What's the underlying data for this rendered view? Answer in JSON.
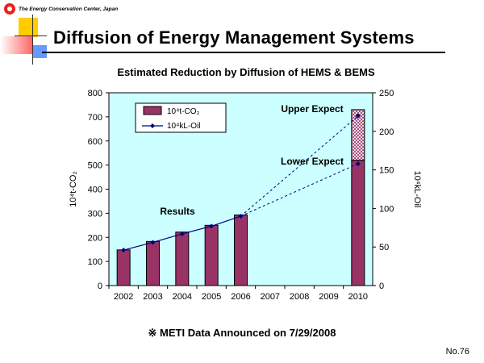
{
  "logo": {
    "text": "The Energy Conservation Center, Japan"
  },
  "slide": {
    "title": "Diffusion of Energy Management Systems",
    "page_number": "No.76"
  },
  "note": "※ METI Data Announced on 7/29/2008",
  "colors": {
    "bar": "#993366",
    "plot_bg": "#ccffff",
    "line": "#000080",
    "title_red": "#ff0000",
    "title_yellow": "#ffcc00",
    "title_blue": "#3366ff"
  },
  "chart_data": {
    "type": "bar",
    "title": "Estimated Reduction by Diffusion of HEMS & BEMS",
    "categories": [
      "2002",
      "2003",
      "2004",
      "2005",
      "2006",
      "2007",
      "2008",
      "2009",
      "2010"
    ],
    "y_left": {
      "label": "10⁴t-CO₂",
      "ticks": [
        "0",
        "100",
        "200",
        "300",
        "400",
        "500",
        "600",
        "700",
        "800"
      ],
      "ylim": [
        0,
        800
      ]
    },
    "y_right": {
      "label": "10⁴kL-Oil",
      "ticks": [
        "0",
        "50",
        "100",
        "150",
        "200",
        "250"
      ],
      "ylim": [
        0,
        250
      ]
    },
    "series": [
      {
        "name": "10⁴t-CO₂",
        "type": "bar",
        "axis": "left",
        "values": [
          148,
          183,
          222,
          250,
          293,
          null,
          null,
          null,
          520
        ],
        "upper_extension": [
          null,
          null,
          null,
          null,
          null,
          null,
          null,
          null,
          730
        ]
      },
      {
        "name": "10⁴kL-Oil",
        "type": "line",
        "axis": "right",
        "values": [
          46,
          56,
          67,
          77,
          90,
          null,
          null,
          null,
          null
        ],
        "projection_upper": {
          "from": "2006",
          "to": "2010",
          "values": [
            90,
            220
          ]
        },
        "projection_lower": {
          "from": "2006",
          "to": "2010",
          "values": [
            90,
            158
          ]
        }
      }
    ],
    "annotations": [
      "Results",
      "Upper Expect",
      "Lower Expect"
    ],
    "legend": "top-left",
    "grid": false
  }
}
